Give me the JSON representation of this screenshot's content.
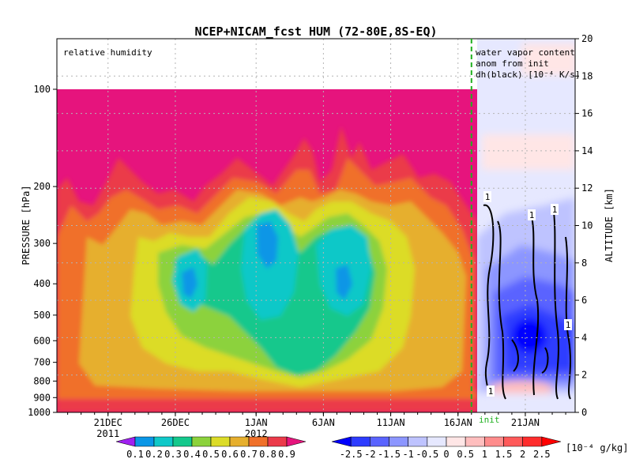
{
  "chart_data": {
    "type": "heatmap",
    "title": "NCEP+NICAM_fcst HUM (72-80E,8S-EQ)",
    "left_axis": {
      "label": "PRESSURE [hPa]",
      "ticks": [
        100,
        200,
        300,
        400,
        500,
        600,
        700,
        800,
        900,
        1000
      ],
      "range": [
        1000,
        100
      ],
      "scale": "log"
    },
    "right_axis": {
      "label": "ALTITUDE [km]",
      "ticks": [
        0,
        2,
        4,
        6,
        8,
        10,
        12,
        14,
        16,
        18,
        20
      ],
      "range": [
        0,
        20
      ]
    },
    "x_axis": {
      "ticks": [
        {
          "label": "21DEC",
          "sub": "2011",
          "day": 21
        },
        {
          "label": "26DEC",
          "sub": "",
          "day": 26
        },
        {
          "label": "1JAN",
          "sub": "2012",
          "day": 32
        },
        {
          "label": "6JAN",
          "sub": "",
          "day": 37
        },
        {
          "label": "11JAN",
          "sub": "",
          "day": 42
        },
        {
          "label": "16JAN",
          "sub": "",
          "day": 47
        },
        {
          "label": "21JAN",
          "sub": "",
          "day": 52
        }
      ],
      "range_day": [
        17.2,
        55.7
      ],
      "init_day": 48.0,
      "init_label": "init"
    },
    "left_panel_label": "relative humidity",
    "right_panel_label": [
      "water vapor content",
      "anom from init",
      "dh(black) [10⁻⁴ K/s]"
    ],
    "contour_labels": [
      "1",
      "1",
      "1",
      "1",
      "1"
    ],
    "humidity_colorbar": {
      "levels": [
        "0.1",
        "0.2",
        "0.3",
        "0.4",
        "0.5",
        "0.6",
        "0.7",
        "0.8",
        "0.9"
      ],
      "colors": [
        "#a020f0",
        "#0a96e6",
        "#10c8c8",
        "#14c88c",
        "#8cd23c",
        "#dcdc28",
        "#e6af2d",
        "#f0702a",
        "#eb3a4a",
        "#e6147d"
      ]
    },
    "anomaly_colorbar": {
      "levels": [
        "-2.5",
        "-2",
        "-1.5",
        "-1",
        "-0.5",
        "0",
        "0.5",
        "1",
        "1.5",
        "2",
        "2.5"
      ],
      "unit": "[10⁻⁴ g/kg]",
      "colors": [
        "#0000ff",
        "#2d3cff",
        "#5a64ff",
        "#8c96ff",
        "#bec3ff",
        "#e6e8ff",
        "#ffe6e6",
        "#ffbebe",
        "#ff8c8c",
        "#ff5a5a",
        "#ff2d2d",
        "#ff0000"
      ]
    }
  }
}
